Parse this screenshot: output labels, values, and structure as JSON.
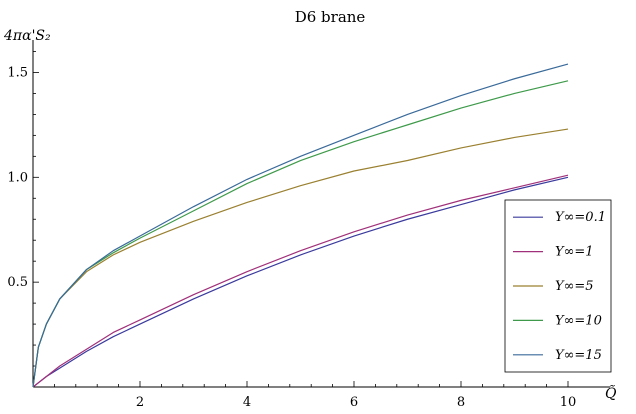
{
  "chart_data": {
    "type": "line",
    "title": "D6 brane",
    "ylabel": "4πα'S₂",
    "xlabel": "Q̃",
    "xlim": [
      0,
      10
    ],
    "ylim": [
      0,
      1.6
    ],
    "x_ticks": [
      2,
      4,
      6,
      8,
      10
    ],
    "x_tick_labels": [
      "2",
      "4",
      "6",
      "8",
      "10"
    ],
    "y_ticks": [
      0.5,
      1.0,
      1.5
    ],
    "y_tick_labels": [
      "0.5",
      "1.0",
      "1.5"
    ],
    "grid": false,
    "legend_position": "right",
    "x": [
      0,
      0.1,
      0.25,
      0.5,
      1,
      1.5,
      2,
      3,
      4,
      5,
      6,
      7,
      8,
      9,
      10
    ],
    "series": [
      {
        "name": "Y∞=0.1",
        "color": "#3a3a9e",
        "values": [
          0,
          0.02,
          0.05,
          0.09,
          0.17,
          0.24,
          0.3,
          0.42,
          0.53,
          0.63,
          0.72,
          0.8,
          0.87,
          0.94,
          1.0
        ]
      },
      {
        "name": "Y∞=1",
        "color": "#a0307a",
        "values": [
          0,
          0.02,
          0.05,
          0.1,
          0.18,
          0.26,
          0.32,
          0.44,
          0.55,
          0.65,
          0.74,
          0.82,
          0.89,
          0.95,
          1.01
        ]
      },
      {
        "name": "Y∞=5",
        "color": "#9a8030",
        "values": [
          0,
          0.19,
          0.3,
          0.42,
          0.55,
          0.63,
          0.69,
          0.79,
          0.88,
          0.96,
          1.03,
          1.08,
          1.14,
          1.19,
          1.23
        ]
      },
      {
        "name": "Y∞=10",
        "color": "#3e9a4a",
        "values": [
          0,
          0.19,
          0.3,
          0.42,
          0.56,
          0.64,
          0.71,
          0.84,
          0.97,
          1.08,
          1.17,
          1.25,
          1.33,
          1.4,
          1.46
        ]
      },
      {
        "name": "Y∞=15",
        "color": "#3a6a9a",
        "values": [
          0,
          0.19,
          0.3,
          0.42,
          0.56,
          0.65,
          0.72,
          0.86,
          0.99,
          1.1,
          1.2,
          1.3,
          1.39,
          1.47,
          1.54
        ]
      }
    ]
  }
}
